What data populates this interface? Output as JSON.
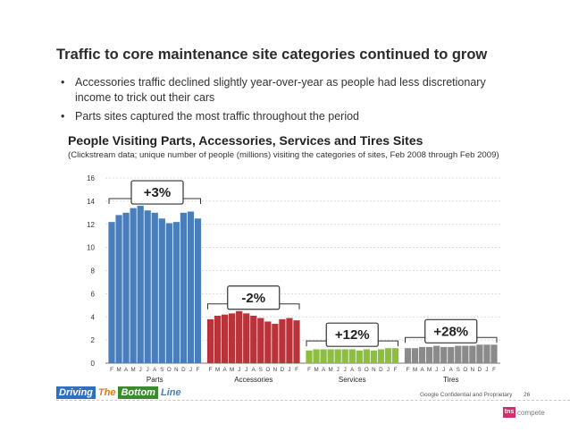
{
  "slide": {
    "title": "Traffic to core maintenance site categories continued to grow",
    "bullets": [
      "Accessories traffic declined slightly year-over-year as people had less discretionary income to trick out their cars",
      "Parts sites captured the most traffic throughout the period"
    ],
    "bullet_glyph": "•"
  },
  "chart_data": {
    "type": "bar",
    "title": "People Visiting Parts, Accessories, Services and Tires Sites",
    "subtitle": "(Clickstream data; unique number of people (millions) visiting the categories of sites, Feb 2008 through Feb 2009)",
    "ylim": [
      0,
      16
    ],
    "yticks": [
      0,
      2,
      4,
      6,
      8,
      10,
      12,
      14,
      16
    ],
    "grid": true,
    "month_labels": [
      "F",
      "M",
      "A",
      "M",
      "J",
      "J",
      "A",
      "S",
      "O",
      "N",
      "D",
      "J",
      "F"
    ],
    "groups": [
      {
        "name": "Parts",
        "color": "#4a7ebb",
        "change": "+3%",
        "values": [
          12.2,
          12.8,
          13.0,
          13.4,
          13.6,
          13.2,
          13.0,
          12.5,
          12.1,
          12.2,
          13.0,
          13.1,
          12.5
        ]
      },
      {
        "name": "Accessories",
        "color": "#b8343a",
        "change": "-2%",
        "values": [
          3.8,
          4.1,
          4.2,
          4.3,
          4.5,
          4.3,
          4.1,
          3.9,
          3.6,
          3.4,
          3.8,
          3.9,
          3.7
        ]
      },
      {
        "name": "Services",
        "color": "#8cbf3f",
        "change": "+12%",
        "values": [
          1.1,
          1.2,
          1.2,
          1.2,
          1.2,
          1.2,
          1.2,
          1.1,
          1.2,
          1.1,
          1.2,
          1.3,
          1.3
        ]
      },
      {
        "name": "Tires",
        "color": "#8a8a8a",
        "change": "+28%",
        "values": [
          1.3,
          1.3,
          1.4,
          1.4,
          1.5,
          1.4,
          1.4,
          1.5,
          1.5,
          1.5,
          1.6,
          1.6,
          1.6
        ]
      }
    ]
  },
  "footer": {
    "brand": [
      "Driving",
      "The",
      "Bottom",
      "Line"
    ],
    "brand_colors": [
      "#2f6fc0",
      "#e07b1a",
      "#3b8a2e",
      "#4a7ebb"
    ],
    "confidential": "Google Confidential and Proprietary",
    "page": "26",
    "logo_mark": "tns",
    "logo_word": "compete"
  }
}
